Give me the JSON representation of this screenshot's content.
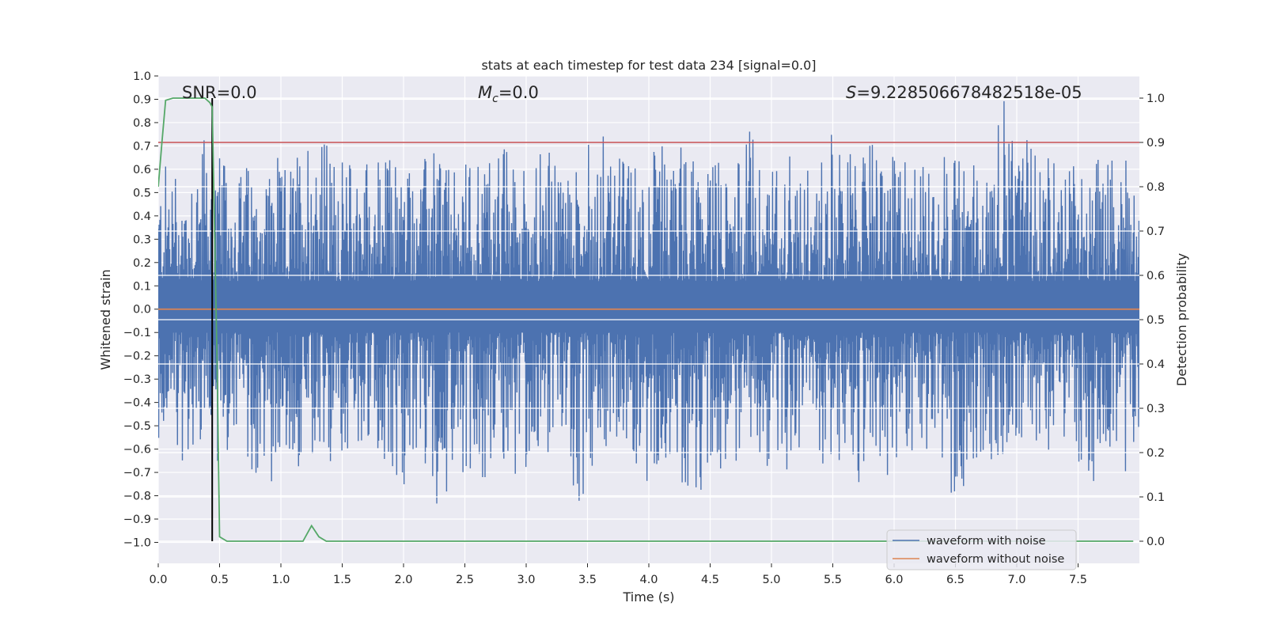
{
  "chart_data": {
    "type": "line",
    "title": "stats at each timestep for test data 234 [signal=0.0]",
    "xlabel": "Time (s)",
    "ylabel": "Whitened strain",
    "y2label": "Detection probability",
    "xlim": [
      0.0,
      8.0
    ],
    "ylim": [
      -1.09,
      1.0
    ],
    "y2lim": [
      -0.05,
      1.05
    ],
    "x_ticks": [
      0.0,
      0.5,
      1.0,
      1.5,
      2.0,
      2.5,
      3.0,
      3.5,
      4.0,
      4.5,
      5.0,
      5.5,
      6.0,
      6.5,
      7.0,
      7.5
    ],
    "x_tick_labels": [
      "0.0",
      "0.5",
      "1.0",
      "1.5",
      "2.0",
      "2.5",
      "3.0",
      "3.5",
      "4.0",
      "4.5",
      "5.0",
      "5.5",
      "6.0",
      "6.5",
      "7.0",
      "7.5"
    ],
    "y_ticks": [
      1.0,
      0.9,
      0.8,
      0.7,
      0.6,
      0.5,
      0.4,
      0.3,
      0.2,
      0.1,
      0.0,
      -0.1,
      -0.2,
      -0.3,
      -0.4,
      -0.5,
      -0.6,
      -0.7,
      -0.8,
      -0.9,
      -1.0
    ],
    "y_tick_labels": [
      "1.0",
      "0.9",
      "0.8",
      "0.7",
      "0.6",
      "0.5",
      "0.4",
      "0.3",
      "0.2",
      "0.1",
      "0.0",
      "−0.1",
      "−0.2",
      "−0.3",
      "−0.4",
      "−0.5",
      "−0.6",
      "−0.7",
      "−0.8",
      "−0.9",
      "−1.0"
    ],
    "y2_ticks": [
      1.0,
      0.9,
      0.8,
      0.7,
      0.6,
      0.5,
      0.4,
      0.3,
      0.2,
      0.1,
      0.0
    ],
    "y2_tick_labels": [
      "1.0",
      "0.9",
      "0.8",
      "0.7",
      "0.6",
      "0.5",
      "0.4",
      "0.3",
      "0.2",
      "0.1",
      "0.0"
    ],
    "annotations": {
      "snr": "SNR=0.0",
      "mc_symbol": "M",
      "mc_subscript": "c",
      "mc_value": "=0.0",
      "s_symbol": "S",
      "s_value": "=9.228506678482518e-05"
    },
    "grid": true,
    "legend_position": "lower-right",
    "legend": [
      "waveform with noise",
      "waveform without noise"
    ],
    "series": [
      {
        "name": "waveform with noise",
        "color": "#4c72b0",
        "axis": "left",
        "envelope": {
          "x": [
            0.0,
            0.1,
            0.2,
            0.3,
            0.4,
            0.5,
            0.6,
            0.7,
            0.8,
            0.9,
            1.0,
            1.1,
            1.2,
            1.3,
            1.4,
            1.5,
            1.6,
            1.7,
            1.8,
            1.9,
            2.0,
            2.1,
            2.2,
            2.3,
            2.4,
            2.5,
            2.6,
            2.7,
            2.8,
            2.9,
            3.0,
            3.1,
            3.2,
            3.3,
            3.4,
            3.5,
            3.6,
            3.7,
            3.8,
            3.9,
            4.0,
            4.1,
            4.2,
            4.3,
            4.4,
            4.5,
            4.6,
            4.7,
            4.8,
            4.9,
            5.0,
            5.1,
            5.2,
            5.3,
            5.4,
            5.5,
            5.6,
            5.7,
            5.8,
            5.9,
            6.0,
            6.1,
            6.2,
            6.3,
            6.4,
            6.5,
            6.6,
            6.7,
            6.8,
            6.9,
            7.0,
            7.1,
            7.2,
            7.3,
            7.4,
            7.5,
            7.6,
            7.7,
            7.8,
            7.9,
            8.0
          ],
          "max": [
            0.6,
            0.73,
            0.6,
            0.79,
            0.7,
            0.72,
            0.6,
            0.7,
            0.6,
            0.7,
            0.63,
            0.7,
            0.85,
            0.9,
            0.73,
            0.7,
            0.7,
            0.73,
            0.7,
            0.72,
            0.75,
            0.66,
            0.72,
            0.83,
            0.62,
            0.7,
            0.75,
            0.73,
            0.8,
            0.68,
            0.7,
            0.75,
            0.66,
            0.68,
            0.66,
            0.7,
            0.76,
            0.69,
            0.71,
            0.68,
            0.72,
            0.78,
            0.7,
            0.83,
            0.65,
            0.7,
            0.7,
            0.68,
            0.79,
            0.66,
            0.7,
            0.65,
            0.66,
            0.68,
            0.73,
            0.75,
            0.8,
            0.7,
            0.7,
            0.72,
            0.7,
            0.75,
            0.68,
            0.66,
            0.72,
            0.76,
            0.7,
            0.75,
            0.68,
            0.9,
            0.7,
            0.73,
            0.79,
            0.7,
            0.68,
            0.7,
            0.7,
            0.77,
            0.7,
            0.63,
            0.6
          ],
          "min": [
            -0.55,
            -0.6,
            -0.65,
            -0.7,
            -0.6,
            -0.66,
            -0.65,
            -0.75,
            -0.8,
            -0.75,
            -0.7,
            -0.72,
            -0.8,
            -0.75,
            -0.79,
            -0.65,
            -0.7,
            -0.65,
            -0.7,
            -0.76,
            -0.91,
            -0.7,
            -0.65,
            -1.0,
            -0.7,
            -0.78,
            -0.72,
            -0.72,
            -0.72,
            -0.7,
            -0.75,
            -0.7,
            -0.66,
            -0.75,
            -0.85,
            -0.76,
            -0.7,
            -0.65,
            -0.72,
            -0.66,
            -0.75,
            -0.7,
            -0.73,
            -0.86,
            -0.89,
            -0.7,
            -0.68,
            -0.72,
            -0.7,
            -0.73,
            -0.75,
            -0.7,
            -0.65,
            -0.7,
            -0.7,
            -0.77,
            -0.7,
            -0.75,
            -0.68,
            -0.72,
            -0.7,
            -0.73,
            -0.65,
            -0.75,
            -0.8,
            -0.78,
            -0.85,
            -0.68,
            -0.7,
            -0.72,
            -0.7,
            -0.72,
            -0.73,
            -0.7,
            -0.7,
            -0.72,
            -0.75,
            -0.7,
            -0.66,
            -0.7,
            -0.55
          ]
        }
      },
      {
        "name": "waveform without noise",
        "color": "#dd8452",
        "axis": "left",
        "x": [
          0.0,
          8.0
        ],
        "y": [
          0.0,
          0.0
        ]
      },
      {
        "color": "#55a868",
        "axis": "right",
        "x": [
          0.0,
          0.03,
          0.06,
          0.12,
          0.2,
          0.3,
          0.38,
          0.42,
          0.44,
          0.48,
          0.5,
          0.56,
          0.65,
          0.8,
          1.0,
          1.12,
          1.18,
          1.25,
          1.31,
          1.37,
          1.45,
          2.0,
          3.0,
          4.0,
          5.0,
          6.0,
          7.0,
          7.95
        ],
        "y": [
          0.8,
          0.9,
          0.995,
          1.0,
          1.0,
          1.0,
          1.0,
          0.99,
          0.98,
          0.4,
          0.01,
          0.0,
          0.0,
          0.0,
          0.0,
          0.0,
          0.0,
          0.035,
          0.01,
          0.0,
          0.0,
          0.0,
          0.0,
          0.0,
          0.0,
          0.0,
          0.0,
          0.0
        ]
      },
      {
        "color": "#c44e52",
        "axis": "right",
        "x": [
          0.0,
          8.0
        ],
        "y": [
          0.9,
          0.9
        ]
      }
    ],
    "vertical_line": {
      "x": 0.44,
      "color": "#000000"
    }
  }
}
